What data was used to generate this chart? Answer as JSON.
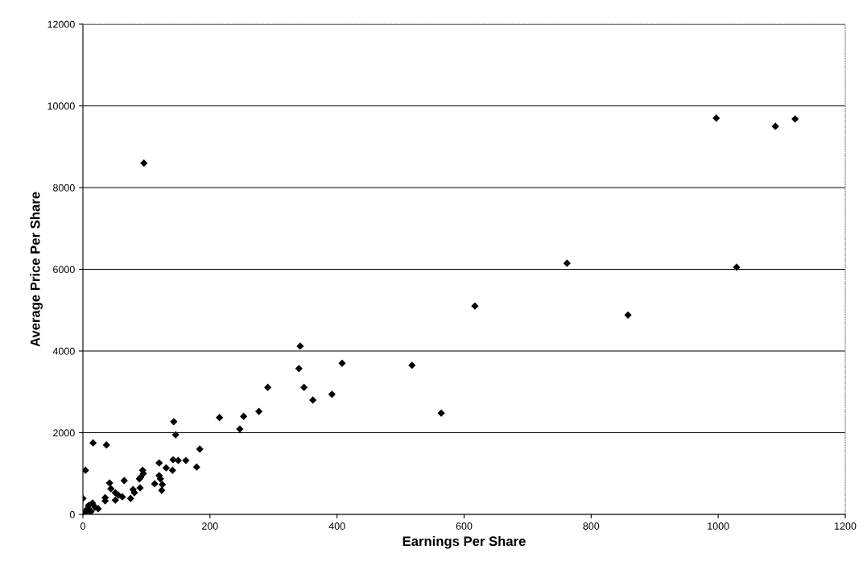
{
  "chart_data": {
    "type": "scatter",
    "xlabel": "Earnings Per Share",
    "ylabel": "Average Price Per Share",
    "x": [
      96,
      997,
      1090,
      1121,
      1029,
      762,
      858,
      617,
      518,
      564,
      143,
      146,
      215,
      247,
      253,
      277,
      291,
      342,
      340,
      348,
      362,
      392,
      408,
      16,
      37,
      184,
      4,
      120,
      131,
      142,
      150,
      162,
      141,
      179,
      94,
      95,
      91,
      89,
      65,
      42,
      120,
      122,
      113,
      125,
      124,
      44,
      90,
      79,
      81,
      75,
      51,
      56,
      62,
      51,
      35,
      35,
      0,
      15,
      9,
      19,
      24,
      6,
      13,
      3,
      12,
      8
    ],
    "values": [
      8600,
      9700,
      9500,
      9680,
      6050,
      6150,
      4880,
      5100,
      3650,
      2480,
      2270,
      1950,
      2370,
      2090,
      2400,
      2520,
      3110,
      4120,
      3570,
      3110,
      2800,
      2940,
      3700,
      1750,
      1700,
      1600,
      1080,
      1260,
      1140,
      1340,
      1320,
      1320,
      1080,
      1160,
      1080,
      1000,
      910,
      870,
      830,
      770,
      950,
      870,
      750,
      730,
      590,
      630,
      650,
      610,
      530,
      390,
      530,
      470,
      430,
      350,
      410,
      330,
      390,
      280,
      220,
      180,
      140,
      120,
      80,
      40,
      60,
      150
    ],
    "color": "#000000",
    "marker": "diamond",
    "xlim": [
      0,
      1200
    ],
    "xticks": [
      0,
      200,
      400,
      600,
      800,
      1000,
      1200
    ],
    "ylim": [
      0,
      12000
    ],
    "yticks": [
      0,
      2000,
      4000,
      6000,
      8000,
      10000,
      12000
    ],
    "grid": "y"
  }
}
